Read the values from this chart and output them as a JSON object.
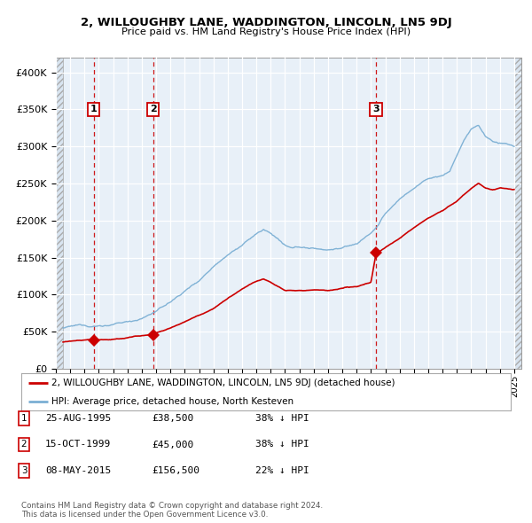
{
  "title": "2, WILLOUGHBY LANE, WADDINGTON, LINCOLN, LN5 9DJ",
  "subtitle": "Price paid vs. HM Land Registry's House Price Index (HPI)",
  "property_label": "2, WILLOUGHBY LANE, WADDINGTON, LINCOLN, LN5 9DJ (detached house)",
  "hpi_label": "HPI: Average price, detached house, North Kesteven",
  "footnote": "Contains HM Land Registry data © Crown copyright and database right 2024.\nThis data is licensed under the Open Government Licence v3.0.",
  "transactions": [
    {
      "num": 1,
      "date": "25-AUG-1995",
      "year": 1995.65,
      "price": 38500,
      "pct": "38% ↓ HPI"
    },
    {
      "num": 2,
      "date": "15-OCT-1999",
      "year": 1999.79,
      "price": 45000,
      "pct": "38% ↓ HPI"
    },
    {
      "num": 3,
      "date": "08-MAY-2015",
      "year": 2015.35,
      "price": 156500,
      "pct": "22% ↓ HPI"
    }
  ],
  "hpi_color": "#7bafd4",
  "property_color": "#cc0000",
  "background_color": "#e8f0f8",
  "ylim": [
    0,
    420000
  ],
  "yticks": [
    0,
    50000,
    100000,
    150000,
    200000,
    250000,
    300000,
    350000,
    400000
  ],
  "xlim_start": 1993.0,
  "xlim_end": 2025.5,
  "data_start": 1993.5,
  "data_end": 2025.0,
  "hpi_anchors_x": [
    1993.5,
    1994,
    1995,
    1995.5,
    1996,
    1997,
    1998,
    1999,
    2000,
    2001,
    2002,
    2003,
    2004,
    2005,
    2006,
    2007,
    2007.5,
    2008,
    2008.5,
    2009,
    2009.5,
    2010,
    2011,
    2012,
    2013,
    2014,
    2015,
    2015.5,
    2016,
    2017,
    2018,
    2019,
    2020,
    2020.5,
    2021,
    2021.5,
    2022,
    2022.5,
    2023,
    2023.5,
    2024,
    2024.5,
    2025
  ],
  "hpi_anchors_y": [
    55000,
    56000,
    58000,
    57000,
    58000,
    60000,
    63000,
    68000,
    78000,
    90000,
    105000,
    120000,
    140000,
    158000,
    170000,
    185000,
    190000,
    185000,
    178000,
    168000,
    163000,
    165000,
    163000,
    162000,
    165000,
    170000,
    185000,
    195000,
    210000,
    230000,
    245000,
    258000,
    262000,
    268000,
    290000,
    310000,
    325000,
    330000,
    315000,
    308000,
    305000,
    303000,
    300000
  ],
  "prop_anchors_x": [
    1993.5,
    1994,
    1995,
    1995.65,
    1996,
    1997,
    1998,
    1999,
    1999.79,
    2000,
    2001,
    2002,
    2003,
    2004,
    2005,
    2006,
    2007,
    2007.5,
    2008,
    2009,
    2010,
    2011,
    2012,
    2013,
    2014,
    2015,
    2015.35,
    2016,
    2017,
    2018,
    2019,
    2020,
    2021,
    2022,
    2022.5,
    2023,
    2023.5,
    2024,
    2024.5,
    2025
  ],
  "prop_anchors_y": [
    36000,
    37000,
    38000,
    38500,
    38500,
    39000,
    41000,
    44000,
    45000,
    48000,
    55000,
    63000,
    72000,
    82000,
    96000,
    108000,
    118000,
    122000,
    118000,
    108000,
    108000,
    110000,
    108000,
    110000,
    112000,
    118000,
    156500,
    165000,
    178000,
    192000,
    205000,
    215000,
    228000,
    245000,
    252000,
    245000,
    242000,
    245000,
    243000,
    242000
  ]
}
